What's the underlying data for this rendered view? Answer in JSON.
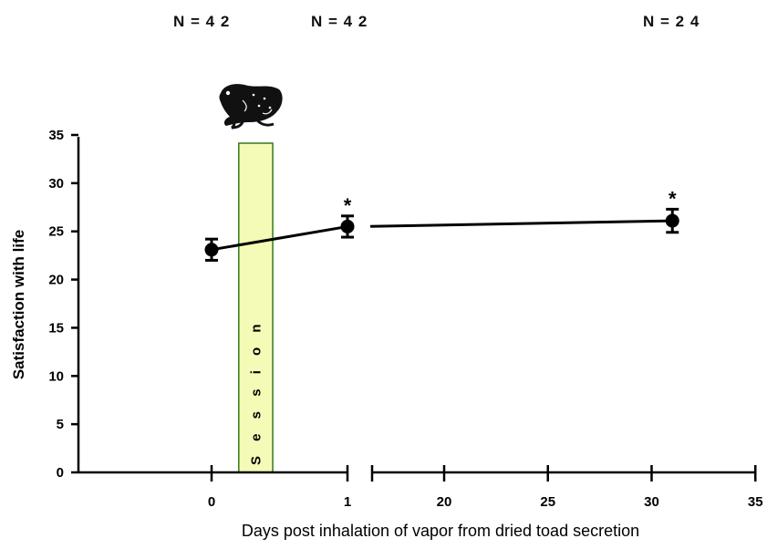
{
  "group_sizes": [
    {
      "day": 0,
      "label": "N = 4 2"
    },
    {
      "day": 1,
      "label": "N = 4 2"
    },
    {
      "day": 30,
      "label": "N = 2 4"
    }
  ],
  "session_label": "S e s s i o n",
  "icon": "toad-icon",
  "colors": {
    "session_fill": "#f4fbb6",
    "session_stroke": "#2e7d1a",
    "ink": "#000000"
  },
  "chart_data": {
    "type": "line",
    "xlabel": "Days post inhalation of vapor from dried toad secretion",
    "ylabel": "Satisfaction with life",
    "ylim": [
      0,
      35
    ],
    "yticks": [
      "0",
      "5",
      "10",
      "15",
      "20",
      "25",
      "30",
      "35"
    ],
    "x_segment_1_ticks": [
      "0",
      "1"
    ],
    "x_segment_2_ticks": [
      "20",
      "25",
      "30",
      "35"
    ],
    "x_axis_broken": true,
    "session_span_days": [
      0.2,
      0.45
    ],
    "points": [
      {
        "x": 0,
        "y": 23.1,
        "err": 1.1,
        "marker": ""
      },
      {
        "x": 1,
        "y": 25.5,
        "err": 1.1,
        "marker": "*"
      },
      {
        "x": 31,
        "y": 26.1,
        "err": 1.2,
        "marker": "*"
      }
    ],
    "grid": false
  }
}
